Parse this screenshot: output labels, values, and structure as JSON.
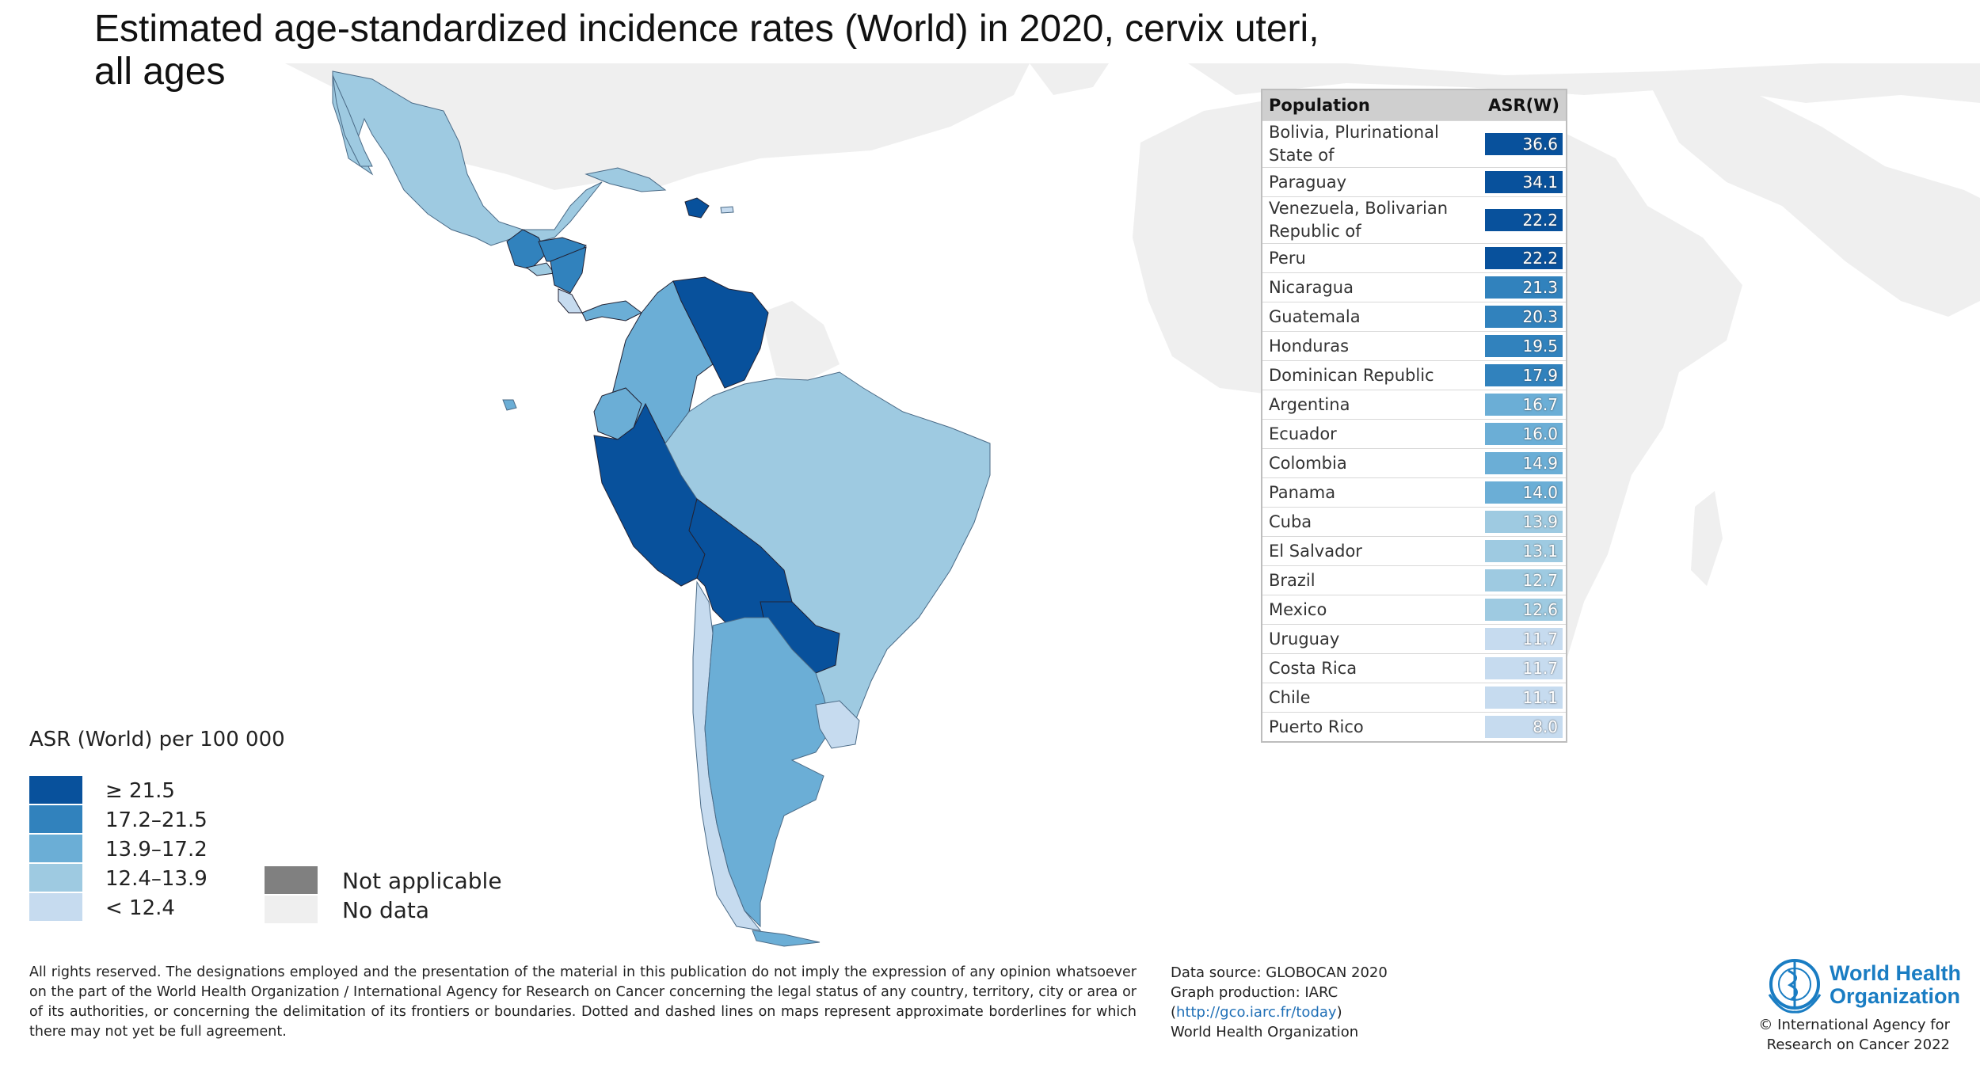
{
  "title": "Estimated age-standardized incidence rates (World) in 2020, cervix uteri, all ages",
  "table": {
    "header_population": "Population",
    "header_value": "ASR(W)",
    "rows": [
      {
        "name": "Bolivia, Plurinational State of",
        "value": "36.6",
        "color": "#08519c"
      },
      {
        "name": "Paraguay",
        "value": "34.1",
        "color": "#08519c"
      },
      {
        "name": "Venezuela, Bolivarian Republic of",
        "value": "22.2",
        "color": "#08519c"
      },
      {
        "name": "Peru",
        "value": "22.2",
        "color": "#08519c"
      },
      {
        "name": "Nicaragua",
        "value": "21.3",
        "color": "#3182bd"
      },
      {
        "name": "Guatemala",
        "value": "20.3",
        "color": "#3182bd"
      },
      {
        "name": "Honduras",
        "value": "19.5",
        "color": "#3182bd"
      },
      {
        "name": "Dominican Republic",
        "value": "17.9",
        "color": "#3182bd"
      },
      {
        "name": "Argentina",
        "value": "16.7",
        "color": "#6baed6"
      },
      {
        "name": "Ecuador",
        "value": "16.0",
        "color": "#6baed6"
      },
      {
        "name": "Colombia",
        "value": "14.9",
        "color": "#6baed6"
      },
      {
        "name": "Panama",
        "value": "14.0",
        "color": "#6baed6"
      },
      {
        "name": "Cuba",
        "value": "13.9",
        "color": "#9ecae1"
      },
      {
        "name": "El Salvador",
        "value": "13.1",
        "color": "#9ecae1"
      },
      {
        "name": "Brazil",
        "value": "12.7",
        "color": "#9ecae1"
      },
      {
        "name": "Mexico",
        "value": "12.6",
        "color": "#9ecae1"
      },
      {
        "name": "Uruguay",
        "value": "11.7",
        "color": "#c6dbef"
      },
      {
        "name": "Costa Rica",
        "value": "11.7",
        "color": "#c6dbef"
      },
      {
        "name": "Chile",
        "value": "11.1",
        "color": "#c6dbef"
      },
      {
        "name": "Puerto Rico",
        "value": "8.0",
        "color": "#c6dbef"
      }
    ]
  },
  "legend": {
    "title": "ASR (World) per 100 000",
    "classes": [
      {
        "label": "≥ 21.5",
        "color": "#08519c"
      },
      {
        "label": "17.2–21.5",
        "color": "#3182bd"
      },
      {
        "label": "13.9–17.2",
        "color": "#6baed6"
      },
      {
        "label": "12.4–13.9",
        "color": "#9ecae1"
      },
      {
        "label": "< 12.4",
        "color": "#c6dbef"
      }
    ],
    "extra": [
      {
        "label": "Not applicable",
        "color": "#808080"
      },
      {
        "label": "No data",
        "color": "#efefef"
      }
    ]
  },
  "footer": {
    "disclaimer": "All rights reserved. The designations employed and the presentation of the material in this publication do not imply the expression of any opinion whatsoever on the part of the World Health Organization / International Agency for Research on Cancer concerning the legal status of any country, territory, city or area or of its authorities, or concerning the delimitation of its frontiers or boundaries. Dotted and dashed lines on maps represent approximate borderlines for which there may not yet be full agreement.",
    "source_line1": "Data source: GLOBOCAN 2020",
    "source_line2": "Graph production: IARC",
    "source_link_open": "(",
    "source_link": "http://gco.iarc.fr/today",
    "source_link_close": ")",
    "source_line4": "World Health Organization",
    "who_line1": "World Health",
    "who_line2": "Organization",
    "copyright_line1": "© International Agency for",
    "copyright_line2": "Research on Cancer 2022"
  }
}
